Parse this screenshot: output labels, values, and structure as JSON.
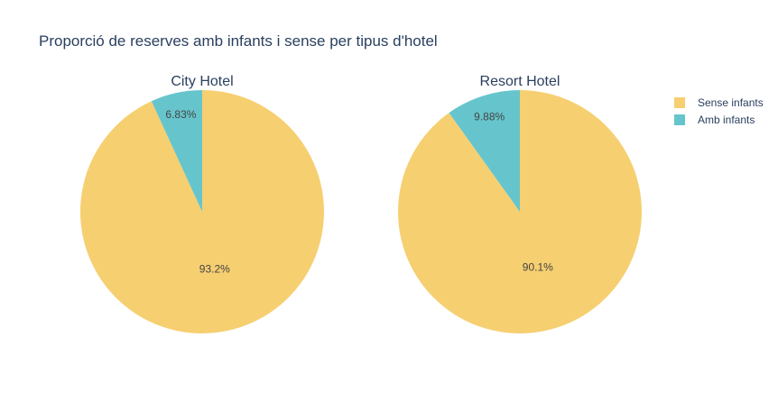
{
  "chart_data": {
    "type": "pie",
    "title": "Proporció de reserves amb infants i sense per tipus d'hotel",
    "legend": {
      "placement": "top-right",
      "entries": [
        {
          "name": "Sense infants",
          "color": "#F6CF71"
        },
        {
          "name": "Amb infants",
          "color": "#66C5CC"
        }
      ]
    },
    "charts": [
      {
        "title": "City Hotel",
        "slices": [
          {
            "label": "Sense infants",
            "value": 93.2,
            "text": "93.2%",
            "color": "#F6CF71"
          },
          {
            "label": "Amb infants",
            "value": 6.83,
            "text": "6.83%",
            "color": "#66C5CC"
          }
        ]
      },
      {
        "title": "Resort Hotel",
        "slices": [
          {
            "label": "Sense infants",
            "value": 90.1,
            "text": "90.1%",
            "color": "#F6CF71"
          },
          {
            "label": "Amb infants",
            "value": 9.88,
            "text": "9.88%",
            "color": "#66C5CC"
          }
        ]
      }
    ]
  }
}
